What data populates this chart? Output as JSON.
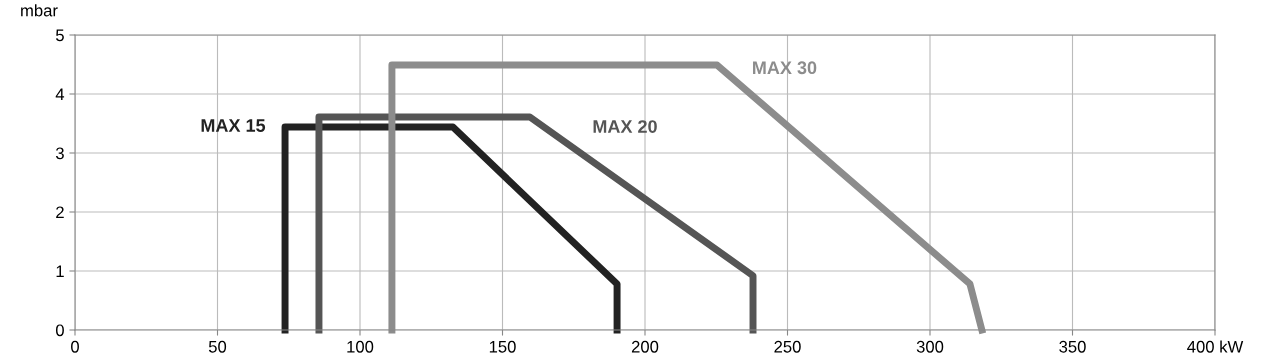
{
  "chart_data": {
    "type": "line",
    "ylabel": "mbar",
    "xlim": [
      0,
      400
    ],
    "xticks": [
      0,
      50,
      100,
      150,
      200,
      250,
      300,
      350,
      {
        "value": 400,
        "label": "400 kW"
      }
    ],
    "ylim": [
      0,
      5
    ],
    "yticks": [
      0,
      1,
      2,
      3,
      4,
      5
    ],
    "grid": true,
    "marker": "none",
    "line_style": "solid",
    "series": [
      {
        "name": "MAX 15",
        "color": "#222222",
        "x": [
          73.7,
          73.7,
          132.6,
          190.2,
          190.2
        ],
        "values": [
          0,
          3.44,
          3.44,
          0.78,
          0
        ]
      },
      {
        "name": "MAX 20",
        "color": "#555555",
        "x": [
          85.6,
          85.6,
          159.6,
          237.9,
          237.9
        ],
        "values": [
          0,
          3.61,
          3.61,
          0.92,
          0
        ]
      },
      {
        "name": "MAX 30",
        "color": "#8c8c8c",
        "x": [
          111.2,
          111.2,
          225.3,
          314,
          318.2
        ],
        "values": [
          0,
          4.49,
          4.49,
          0.78,
          0
        ]
      }
    ]
  }
}
